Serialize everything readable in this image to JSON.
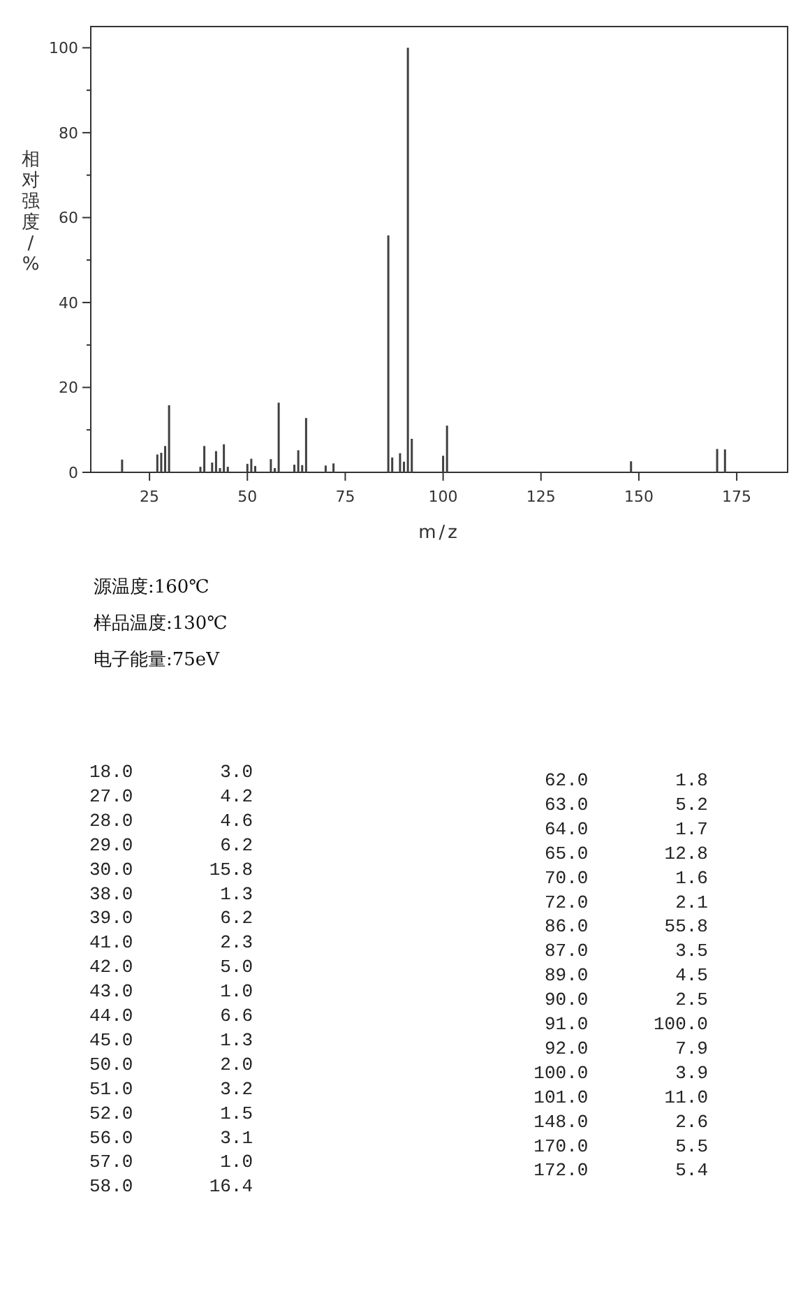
{
  "chart_data": {
    "type": "bar",
    "xlabel": "m/z",
    "ylabel": "相对强度/%",
    "color": "#404040",
    "x": [
      18,
      27,
      28,
      29,
      30,
      38,
      39,
      41,
      42,
      43,
      44,
      45,
      50,
      51,
      52,
      56,
      57,
      58,
      62,
      63,
      64,
      65,
      70,
      72,
      86,
      87,
      89,
      90,
      91,
      92,
      100,
      101,
      148,
      170,
      172
    ],
    "values": [
      3.0,
      4.2,
      4.6,
      6.2,
      15.8,
      1.3,
      6.2,
      2.3,
      5.0,
      1.0,
      6.6,
      1.3,
      2.0,
      3.2,
      1.5,
      3.1,
      1.0,
      16.4,
      1.8,
      5.2,
      1.7,
      12.8,
      1.6,
      2.1,
      55.8,
      3.5,
      4.5,
      2.5,
      100.0,
      7.9,
      3.9,
      11.0,
      2.6,
      5.5,
      5.4
    ],
    "xlim": [
      10,
      188
    ],
    "xticks": [
      25,
      50,
      75,
      100,
      125,
      150,
      175
    ],
    "ylim": [
      0,
      105
    ],
    "yticks": [
      0,
      {
        "value": 10,
        "label": null
      },
      20,
      {
        "value": 30,
        "label": null
      },
      40,
      {
        "value": 50,
        "label": null
      },
      60,
      {
        "value": 70,
        "label": null
      },
      80,
      {
        "value": 90,
        "label": null
      },
      100
    ],
    "annotations": [
      "源温度:160℃",
      "样品温度:130℃",
      "电子能量:75eV",
      "18.0        3.0",
      "27.0        4.2",
      "28.0        4.6",
      "29.0        6.2",
      "30.0       15.8",
      "38.0        1.3",
      "39.0        6.2",
      "41.0        2.3",
      "42.0        5.0",
      "43.0        1.0",
      "44.0        6.6",
      "45.0        1.3",
      "50.0        2.0",
      "51.0        3.2",
      "52.0        1.5",
      "56.0        3.1",
      "57.0        1.0",
      "58.0       16.4",
      "62.0        1.8",
      "63.0        5.2",
      "64.0        1.7",
      "65.0       12.8",
      "70.0        1.6",
      "72.0        2.1",
      "86.0       55.8",
      "87.0        3.5",
      "89.0        4.5",
      "90.0        2.5",
      "91.0      100.0",
      "92.0        7.9",
      "100.0        3.9",
      "101.0       11.0",
      "148.0        2.6",
      "170.0        5.5",
      "172.0        5.4"
    ]
  }
}
